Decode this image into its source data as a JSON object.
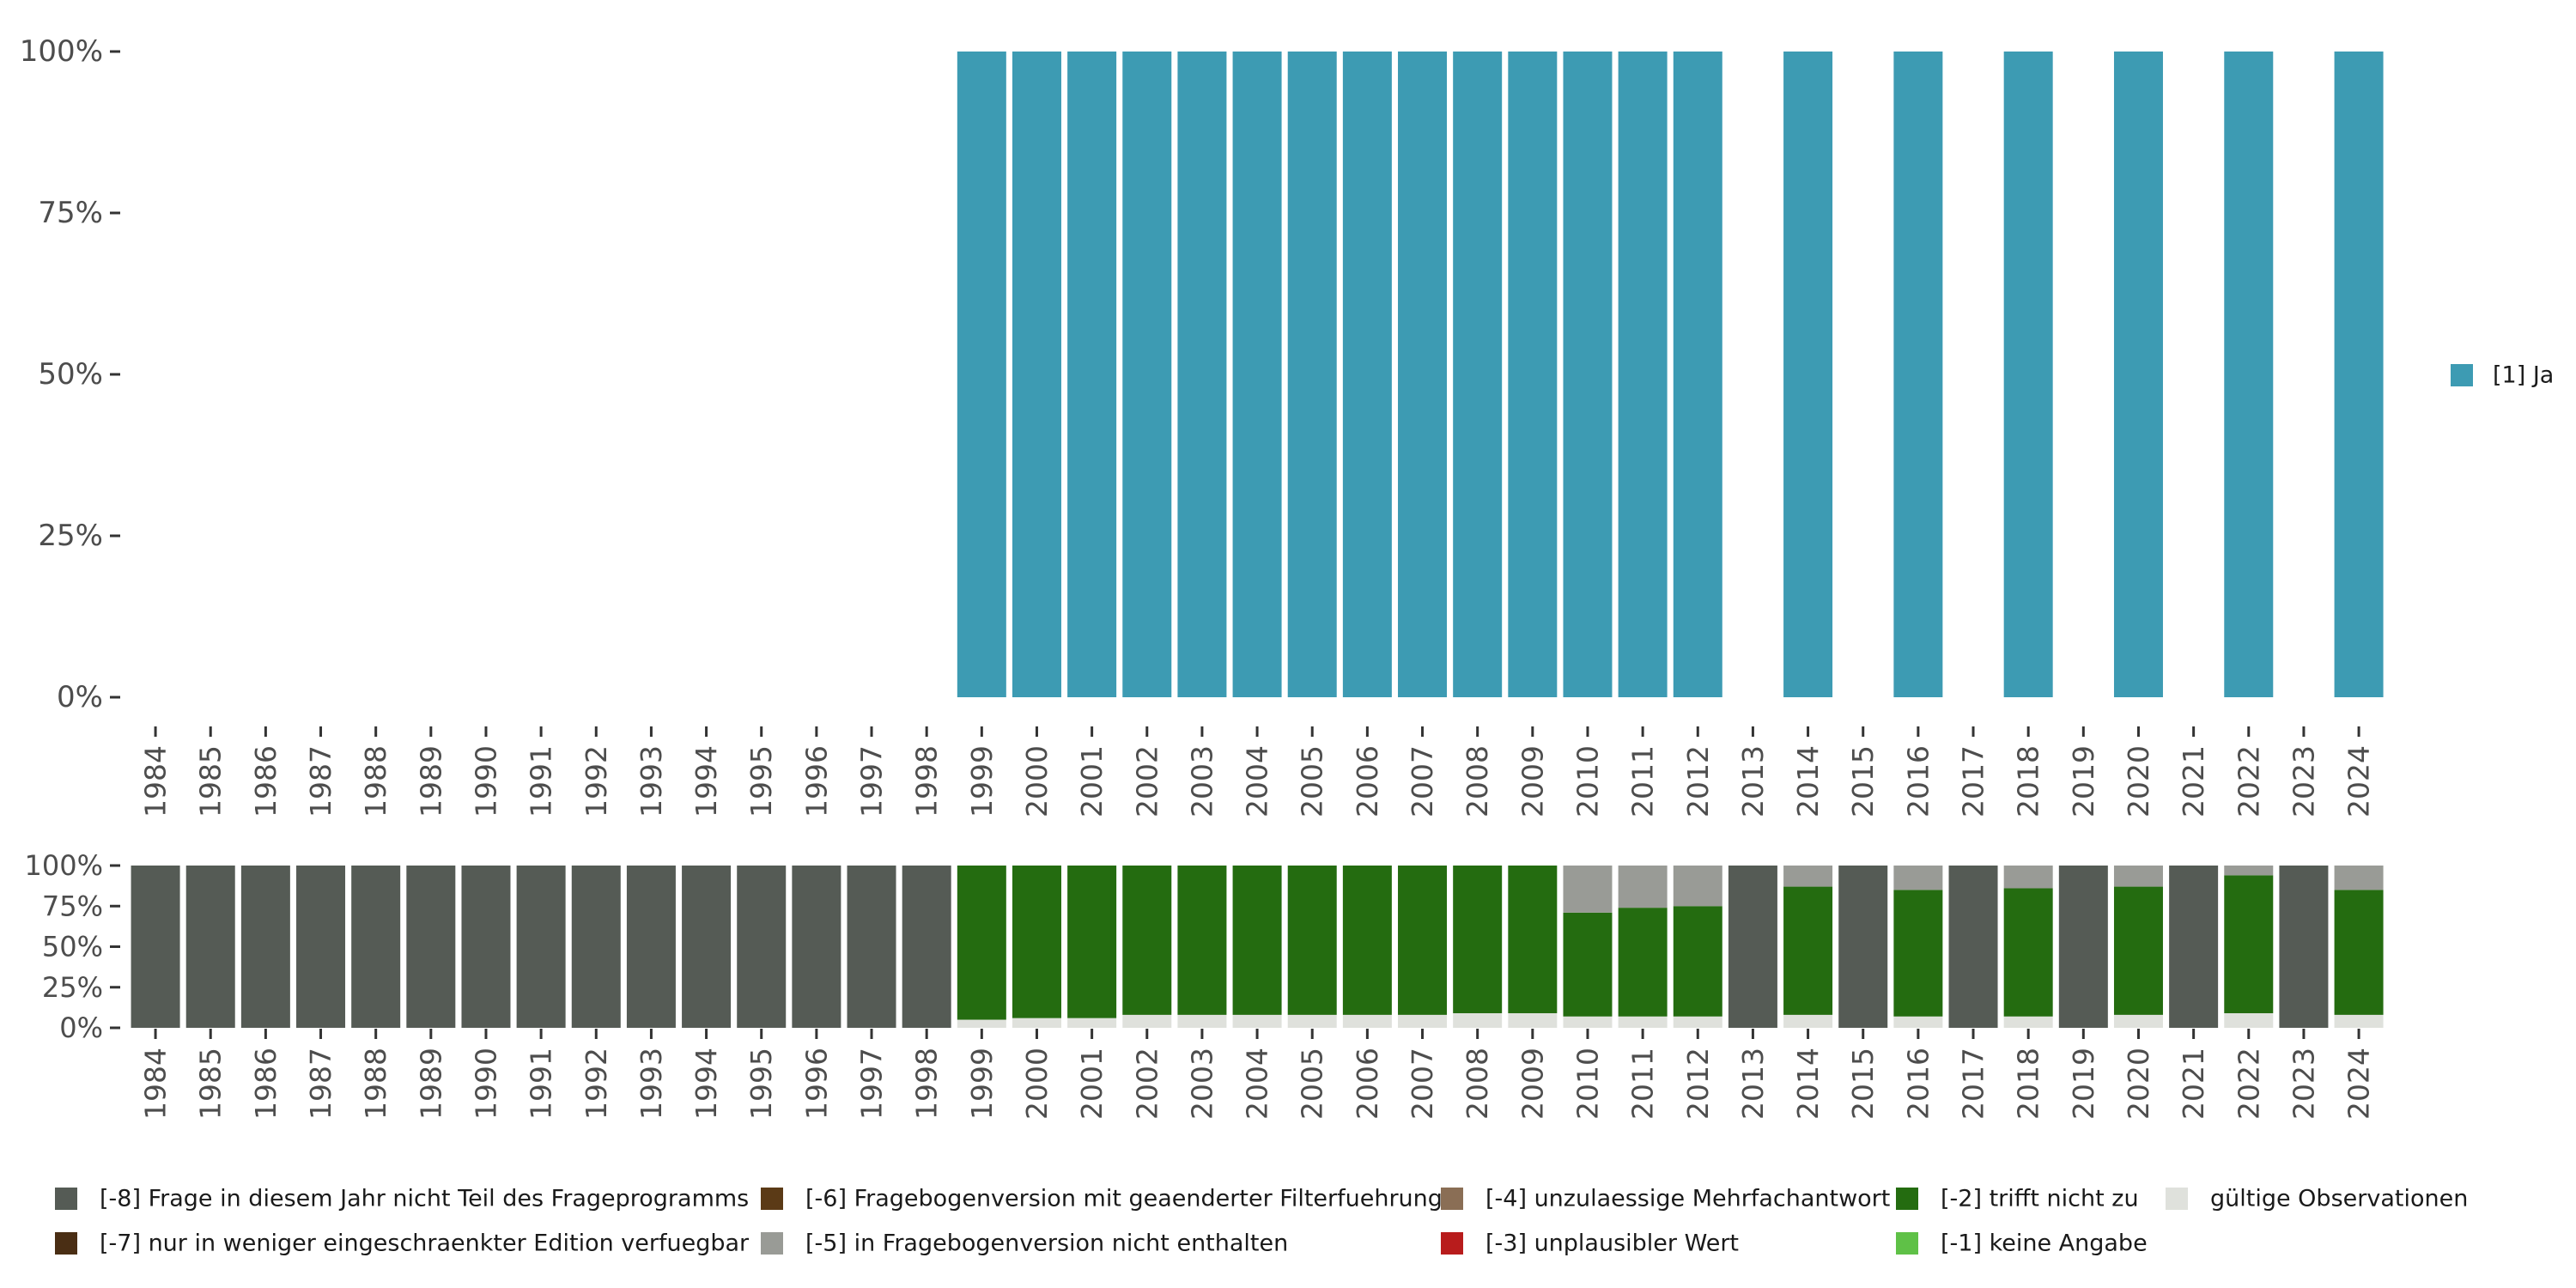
{
  "chart_data": [
    {
      "type": "bar",
      "stacked": true,
      "x": [
        "1984",
        "1985",
        "1986",
        "1987",
        "1988",
        "1989",
        "1990",
        "1991",
        "1992",
        "1993",
        "1994",
        "1995",
        "1996",
        "1997",
        "1998",
        "1999",
        "2000",
        "2001",
        "2002",
        "2003",
        "2004",
        "2005",
        "2006",
        "2007",
        "2008",
        "2009",
        "2010",
        "2011",
        "2012",
        "2013",
        "2014",
        "2015",
        "2016",
        "2017",
        "2018",
        "2019",
        "2020",
        "2021",
        "2022",
        "2023",
        "2024"
      ],
      "y_tick_labels": [
        "0%",
        "25%",
        "50%",
        "75%",
        "100%"
      ],
      "ylim": [
        0,
        100
      ],
      "grid": false,
      "legend_position": "right",
      "series": [
        {
          "name": "[1] Ja",
          "color": "#3d9bb3",
          "values": [
            null,
            null,
            null,
            null,
            null,
            null,
            null,
            null,
            null,
            null,
            null,
            null,
            null,
            null,
            null,
            100,
            100,
            100,
            100,
            100,
            100,
            100,
            100,
            100,
            100,
            100,
            100,
            100,
            100,
            null,
            100,
            null,
            100,
            null,
            100,
            null,
            100,
            null,
            100,
            null,
            100
          ]
        }
      ]
    },
    {
      "type": "bar",
      "stacked": true,
      "x": [
        "1984",
        "1985",
        "1986",
        "1987",
        "1988",
        "1989",
        "1990",
        "1991",
        "1992",
        "1993",
        "1994",
        "1995",
        "1996",
        "1997",
        "1998",
        "1999",
        "2000",
        "2001",
        "2002",
        "2003",
        "2004",
        "2005",
        "2006",
        "2007",
        "2008",
        "2009",
        "2010",
        "2011",
        "2012",
        "2013",
        "2014",
        "2015",
        "2016",
        "2017",
        "2018",
        "2019",
        "2020",
        "2021",
        "2022",
        "2023",
        "2024"
      ],
      "y_tick_labels": [
        "0%",
        "25%",
        "50%",
        "75%",
        "100%"
      ],
      "ylim": [
        0,
        100
      ],
      "grid": false,
      "legend_position": "bottom",
      "series": [
        {
          "name": "gültige Observationen",
          "color": "#dfe1dc",
          "values": [
            0,
            0,
            0,
            0,
            0,
            0,
            0,
            0,
            0,
            0,
            0,
            0,
            0,
            0,
            0,
            5,
            6,
            6,
            8,
            8,
            8,
            8,
            8,
            8,
            9,
            9,
            7,
            7,
            7,
            0,
            8,
            0,
            7,
            0,
            7,
            0,
            8,
            0,
            9,
            0,
            8
          ]
        },
        {
          "name": "[-2] trifft nicht zu",
          "color": "#246c10",
          "values": [
            0,
            0,
            0,
            0,
            0,
            0,
            0,
            0,
            0,
            0,
            0,
            0,
            0,
            0,
            0,
            95,
            94,
            94,
            92,
            92,
            92,
            92,
            92,
            92,
            91,
            91,
            64,
            67,
            68,
            0,
            79,
            0,
            78,
            0,
            79,
            0,
            79,
            0,
            85,
            0,
            77
          ]
        },
        {
          "name": "[-5] in Fragebogenversion nicht enthalten",
          "color": "#999b96",
          "values": [
            0,
            0,
            0,
            0,
            0,
            0,
            0,
            0,
            0,
            0,
            0,
            0,
            0,
            0,
            0,
            0,
            0,
            0,
            0,
            0,
            0,
            0,
            0,
            0,
            0,
            0,
            29,
            26,
            25,
            0,
            13,
            0,
            15,
            0,
            14,
            0,
            13,
            0,
            6,
            0,
            15
          ]
        },
        {
          "name": "[-8] Frage in diesem Jahr nicht Teil des Frageprogramms",
          "color": "#555b55",
          "values": [
            100,
            100,
            100,
            100,
            100,
            100,
            100,
            100,
            100,
            100,
            100,
            100,
            100,
            100,
            100,
            0,
            0,
            0,
            0,
            0,
            0,
            0,
            0,
            0,
            0,
            0,
            0,
            0,
            0,
            100,
            0,
            100,
            0,
            100,
            0,
            100,
            0,
            100,
            0,
            100,
            0
          ]
        }
      ],
      "legend": [
        {
          "name": "[-8] Frage in diesem Jahr nicht Teil des Frageprogramms",
          "color": "#555b55"
        },
        {
          "name": "[-7] nur in weniger eingeschraenkter Edition verfuegbar",
          "color": "#4a2e14"
        },
        {
          "name": "[-6] Fragebogenversion mit geaenderter Filterfuehrung",
          "color": "#5b3a16"
        },
        {
          "name": "[-5] in Fragebogenversion nicht enthalten",
          "color": "#999b96"
        },
        {
          "name": "[-4] unzulaessige Mehrfachantwort",
          "color": "#8a6e55"
        },
        {
          "name": "[-3] unplausibler Wert",
          "color": "#b81c1c"
        },
        {
          "name": "[-2] trifft nicht zu",
          "color": "#246c10"
        },
        {
          "name": "[-1] keine Angabe",
          "color": "#5fc147"
        },
        {
          "name": "gültige Observationen",
          "color": "#dfe1dc"
        }
      ]
    }
  ]
}
